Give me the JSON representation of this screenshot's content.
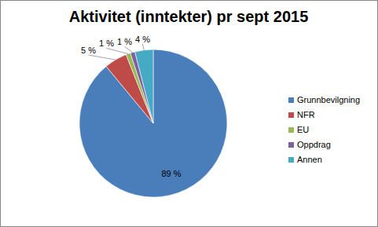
{
  "chart_data": {
    "type": "pie",
    "title": "Aktivitet (inntekter) pr sept 2015",
    "categories": [
      "Grunnbevilgning",
      "NFR",
      "EU",
      "Oppdrag",
      "Annen"
    ],
    "values": [
      89,
      5,
      1,
      1,
      4
    ],
    "value_labels": [
      "89 %",
      "5 %",
      "1 %",
      "1 %",
      "4 %"
    ],
    "colors": [
      "#4a7ebb",
      "#be4b48",
      "#98b954",
      "#7d60a0",
      "#46aac5"
    ],
    "data_labels": true,
    "legend": "right"
  }
}
